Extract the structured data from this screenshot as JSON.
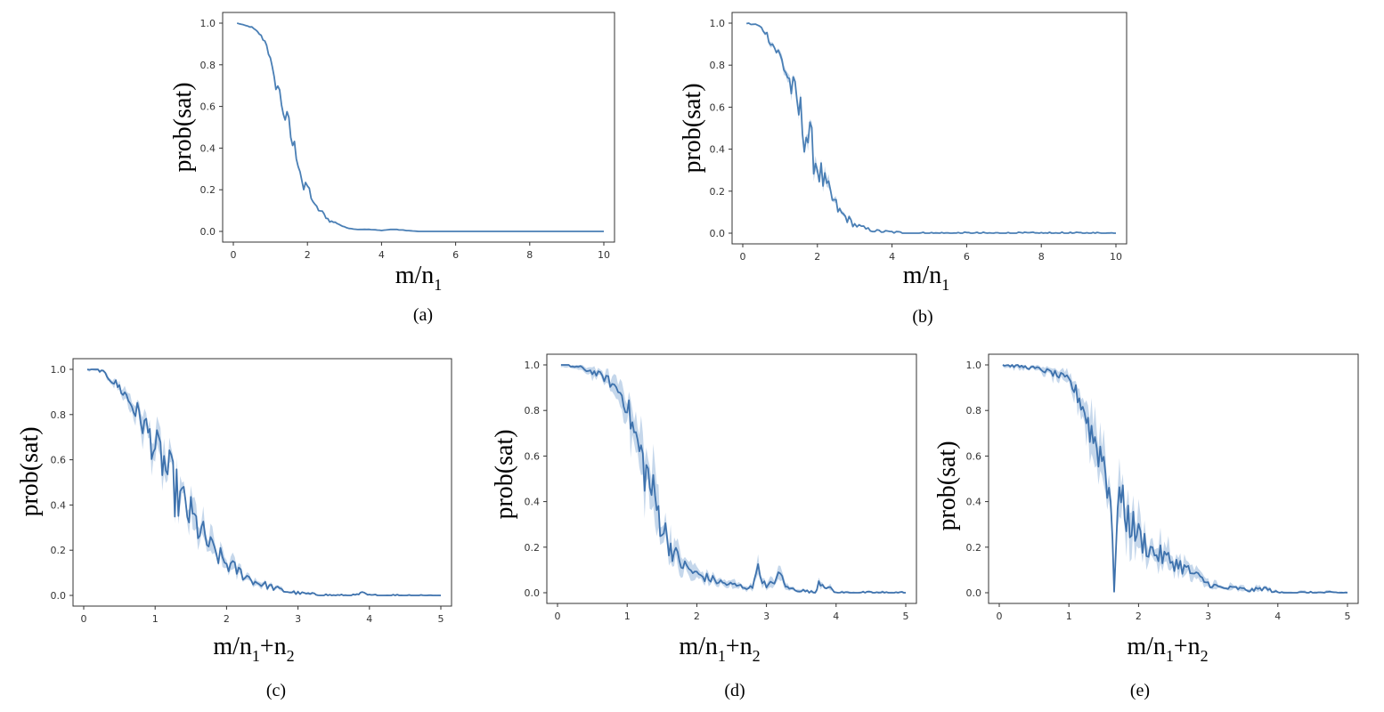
{
  "chart_data": [
    {
      "id": "a",
      "type": "line",
      "caption": "(a)",
      "title": "",
      "ylabel": "prob(sat)",
      "xlabel": {
        "base": "m/n",
        "sub1": "1",
        "plus": "",
        "sub2": ""
      },
      "xlim": [
        0,
        10
      ],
      "ylim": [
        0,
        1
      ],
      "xticks": [
        0,
        2,
        4,
        6,
        8,
        10
      ],
      "yticks": [
        "0.0",
        "0.2",
        "0.4",
        "0.6",
        "0.8",
        "1.0"
      ],
      "color": "#4a7fb5",
      "band_color": "#b7cde6",
      "series": [
        {
          "name": "prob(sat)",
          "x": [
            0.1,
            0.5,
            0.7,
            0.9,
            1.0,
            1.1,
            1.2,
            1.3,
            1.4,
            1.5,
            1.6,
            1.7,
            1.8,
            1.9,
            2.0,
            2.2,
            2.4,
            2.6,
            2.8,
            3.0,
            3.3,
            3.6,
            4.0,
            4.3,
            5.0,
            6.0,
            8.0,
            10.0
          ],
          "values": [
            1.0,
            0.98,
            0.95,
            0.9,
            0.82,
            0.72,
            0.7,
            0.62,
            0.55,
            0.5,
            0.42,
            0.38,
            0.3,
            0.2,
            0.22,
            0.12,
            0.09,
            0.05,
            0.04,
            0.02,
            0.01,
            0.01,
            0.005,
            0.01,
            0.0,
            0.0,
            0.0,
            0.0
          ],
          "spread": 0.0
        }
      ]
    },
    {
      "id": "b",
      "type": "line",
      "caption": "(b)",
      "title": "",
      "ylabel": "prob(sat)",
      "xlabel": {
        "base": "m/n",
        "sub1": "1",
        "plus": "",
        "sub2": ""
      },
      "xlim": [
        0,
        10
      ],
      "ylim": [
        0,
        1
      ],
      "xticks": [
        0,
        2,
        4,
        6,
        8,
        10
      ],
      "yticks": [
        "0.0",
        "0.2",
        "0.4",
        "0.6",
        "0.8",
        "1.0"
      ],
      "color": "#4a7fb5",
      "band_color": "#b7cde6",
      "series": [
        {
          "name": "prob(sat)",
          "x": [
            0.1,
            0.4,
            0.6,
            0.8,
            1.0,
            1.2,
            1.4,
            1.6,
            1.8,
            2.0,
            2.2,
            2.4,
            2.6,
            2.8,
            3.0,
            3.3,
            3.6,
            4.0,
            4.5,
            5.0,
            6.0,
            8.0,
            10.0
          ],
          "values": [
            1.0,
            0.99,
            0.96,
            0.9,
            0.84,
            0.75,
            0.64,
            0.53,
            0.43,
            0.32,
            0.23,
            0.16,
            0.1,
            0.07,
            0.04,
            0.02,
            0.01,
            0.005,
            0.0,
            0.0,
            0.0,
            0.0,
            0.0
          ],
          "spread": 0.03
        }
      ]
    },
    {
      "id": "c",
      "type": "line",
      "caption": "(c)",
      "title": "",
      "ylabel": "prob(sat)",
      "xlabel": {
        "base": "m/n",
        "sub1": "1",
        "plus": "+n",
        "sub2": "2"
      },
      "xlim": [
        0,
        5
      ],
      "ylim": [
        0,
        1
      ],
      "xticks": [
        0,
        1,
        2,
        3,
        4,
        5
      ],
      "yticks": [
        "0.0",
        "0.2",
        "0.4",
        "0.6",
        "0.8",
        "1.0"
      ],
      "color": "#3e72ad",
      "band_color": "#b7cde6",
      "series": [
        {
          "name": "prob(sat)",
          "x": [
            0.05,
            0.2,
            0.3,
            0.4,
            0.5,
            0.6,
            0.7,
            0.8,
            0.9,
            1.0,
            1.1,
            1.2,
            1.3,
            1.4,
            1.5,
            1.6,
            1.7,
            1.8,
            2.0,
            2.2,
            2.4,
            2.6,
            2.8,
            3.0,
            3.2,
            3.5,
            3.8,
            3.9,
            4.0,
            5.0
          ],
          "values": [
            1.0,
            1.0,
            0.98,
            0.95,
            0.92,
            0.88,
            0.83,
            0.78,
            0.72,
            0.65,
            0.6,
            0.52,
            0.45,
            0.4,
            0.35,
            0.3,
            0.25,
            0.2,
            0.14,
            0.1,
            0.06,
            0.04,
            0.02,
            0.01,
            0.005,
            0.0,
            0.0,
            0.01,
            0.0,
            0.0
          ],
          "spread": 0.06
        }
      ]
    },
    {
      "id": "d",
      "type": "line",
      "caption": "(d)",
      "title": "",
      "ylabel": "prob(sat)",
      "xlabel": {
        "base": "m/n",
        "sub1": "1",
        "plus": "+n",
        "sub2": "2"
      },
      "xlim": [
        0,
        5
      ],
      "ylim": [
        0,
        1
      ],
      "xticks": [
        0,
        1,
        2,
        3,
        4,
        5
      ],
      "yticks": [
        "0.0",
        "0.2",
        "0.4",
        "0.6",
        "0.8",
        "1.0"
      ],
      "color": "#3e72ad",
      "band_color": "#b7cde6",
      "series": [
        {
          "name": "prob(sat)",
          "x": [
            0.05,
            0.3,
            0.5,
            0.7,
            0.9,
            1.0,
            1.1,
            1.2,
            1.3,
            1.4,
            1.5,
            1.6,
            1.7,
            1.8,
            2.0,
            2.2,
            2.4,
            2.6,
            2.8,
            2.85,
            3.0,
            3.2,
            3.3,
            3.7,
            3.75,
            4.0,
            5.0
          ],
          "values": [
            1.0,
            0.99,
            0.97,
            0.94,
            0.88,
            0.82,
            0.7,
            0.6,
            0.5,
            0.4,
            0.3,
            0.22,
            0.16,
            0.12,
            0.08,
            0.06,
            0.04,
            0.03,
            0.02,
            0.12,
            0.02,
            0.08,
            0.02,
            0.0,
            0.05,
            0.0,
            0.0
          ],
          "spread": 0.1
        }
      ]
    },
    {
      "id": "e",
      "type": "line",
      "caption": "(e)",
      "title": "",
      "ylabel": "prob(sat)",
      "xlabel": {
        "base": "m/n",
        "sub1": "1",
        "plus": "+n",
        "sub2": "2"
      },
      "xlim": [
        0,
        5
      ],
      "ylim": [
        0,
        1
      ],
      "xticks": [
        0,
        1,
        2,
        3,
        4,
        5
      ],
      "yticks": [
        "0.0",
        "0.2",
        "0.4",
        "0.6",
        "0.8",
        "1.0"
      ],
      "color": "#3e72ad",
      "band_color": "#b7cde6",
      "series": [
        {
          "name": "prob(sat)",
          "x": [
            0.05,
            0.4,
            0.6,
            0.8,
            1.0,
            1.1,
            1.2,
            1.3,
            1.4,
            1.5,
            1.6,
            1.65,
            1.7,
            1.8,
            1.9,
            2.0,
            2.2,
            2.4,
            2.6,
            2.8,
            3.0,
            3.2,
            3.4,
            3.6,
            3.8,
            4.0,
            5.0
          ],
          "values": [
            1.0,
            0.99,
            0.98,
            0.96,
            0.93,
            0.88,
            0.82,
            0.72,
            0.65,
            0.58,
            0.45,
            0.0,
            0.45,
            0.35,
            0.3,
            0.25,
            0.18,
            0.15,
            0.12,
            0.08,
            0.04,
            0.02,
            0.02,
            0.01,
            0.02,
            0.0,
            0.0
          ],
          "spread": 0.1
        }
      ]
    }
  ]
}
